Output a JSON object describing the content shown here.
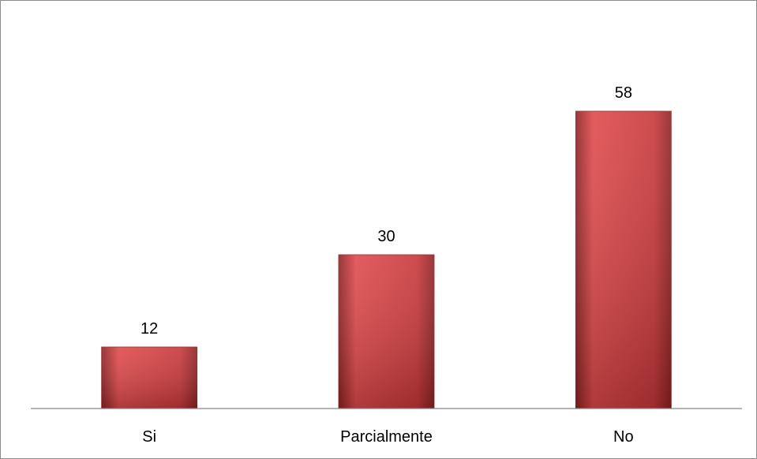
{
  "chart_data": {
    "type": "bar",
    "categories": [
      "Si",
      "Parcialmente",
      "No"
    ],
    "values": [
      12,
      30,
      58
    ],
    "title": "",
    "xlabel": "",
    "ylabel": "",
    "ylim": [
      0,
      70
    ],
    "grid": false,
    "legend": "none",
    "data_labels": true,
    "bar_color": "#c8383a",
    "bar_color_light": "#e04a4b",
    "bar_color_dark": "#8e2224",
    "axis_color": "#868686"
  }
}
